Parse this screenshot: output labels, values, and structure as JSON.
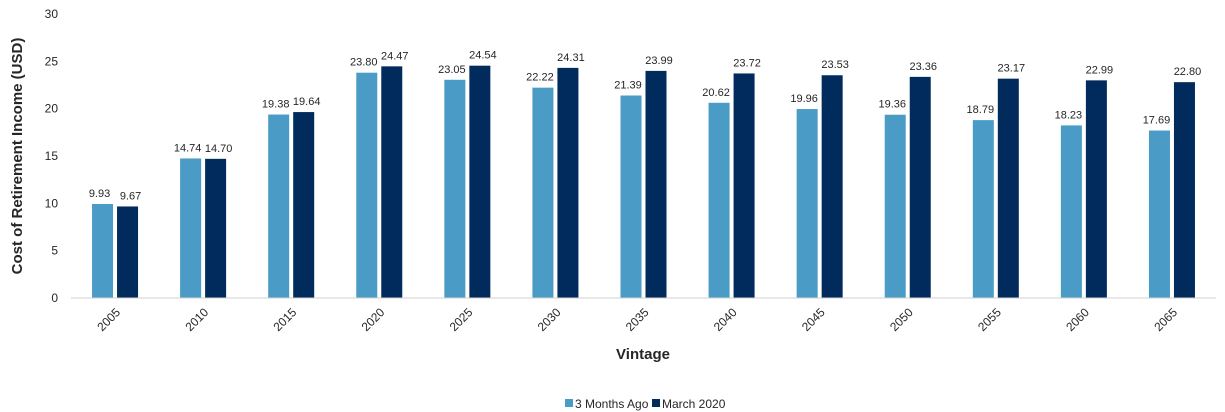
{
  "chart_data": {
    "type": "bar",
    "categories": [
      "2005",
      "2010",
      "2015",
      "2020",
      "2025",
      "2030",
      "2035",
      "2040",
      "2045",
      "2050",
      "2055",
      "2060",
      "2065"
    ],
    "series": [
      {
        "name": "3 Months Ago",
        "color": "#4a9bc6",
        "values": [
          9.93,
          14.74,
          19.38,
          23.8,
          23.05,
          22.22,
          21.39,
          20.62,
          19.96,
          19.36,
          18.79,
          18.23,
          17.69
        ],
        "labels": [
          "9.93",
          "14.74",
          "19.38",
          "23.80",
          "23.05",
          "22.22",
          "21.39",
          "20.62",
          "19.96",
          "19.36",
          "18.79",
          "18.23",
          "17.69"
        ]
      },
      {
        "name": "March 2020",
        "color": "#002b5c",
        "values": [
          9.67,
          14.7,
          19.64,
          24.47,
          24.54,
          24.31,
          23.99,
          23.72,
          23.53,
          23.36,
          23.17,
          22.99,
          22.8
        ],
        "labels": [
          "9.67",
          "14.70",
          "19.64",
          "24.47",
          "24.54",
          "24.31",
          "23.99",
          "23.72",
          "23.53",
          "23.36",
          "23.17",
          "22.99",
          "22.80"
        ]
      }
    ],
    "title": "",
    "xlabel": "Vintage",
    "ylabel": "Cost of Retirement Income (USD)",
    "ylim": [
      0,
      30
    ],
    "yticks": [
      "0",
      "5",
      "10",
      "15",
      "20",
      "25",
      "30"
    ],
    "ytick_values": [
      0,
      5,
      10,
      15,
      20,
      25,
      30
    ],
    "grid": false,
    "legend_position": "bottom-center"
  }
}
